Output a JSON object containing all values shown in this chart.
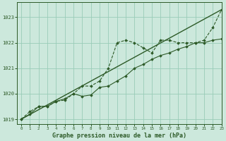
{
  "bg_color": "#cce8dc",
  "grid_color": "#99ccb8",
  "line_color": "#2d5a27",
  "title": "Graphe pression niveau de la mer (hPa)",
  "xlim": [
    -0.5,
    23
  ],
  "ylim": [
    1018.8,
    1023.6
  ],
  "yticks": [
    1019,
    1020,
    1021,
    1022,
    1023
  ],
  "xticks": [
    0,
    1,
    2,
    3,
    4,
    5,
    6,
    7,
    8,
    9,
    10,
    11,
    12,
    13,
    14,
    15,
    16,
    17,
    18,
    19,
    20,
    21,
    22,
    23
  ],
  "series_linear": {
    "x": [
      0,
      23
    ],
    "y": [
      1019.0,
      1023.3
    ]
  },
  "series_dotted": {
    "x": [
      0,
      1,
      2,
      3,
      4,
      5,
      6,
      7,
      8,
      9,
      10,
      11,
      12,
      13,
      14,
      15,
      16,
      17,
      18,
      19,
      20,
      21,
      22,
      23
    ],
    "y": [
      1019.0,
      1019.3,
      1019.5,
      1019.5,
      1019.7,
      1019.75,
      1020.0,
      1020.3,
      1020.3,
      1020.5,
      1021.0,
      1022.0,
      1022.1,
      1022.0,
      1021.8,
      1021.6,
      1022.1,
      1022.1,
      1022.0,
      1022.0,
      1022.0,
      1022.1,
      1022.6,
      1023.3
    ]
  },
  "series_solid": {
    "x": [
      0,
      1,
      2,
      3,
      4,
      5,
      6,
      7,
      8,
      9,
      10,
      11,
      12,
      13,
      14,
      15,
      16,
      17,
      18,
      19,
      20,
      21,
      22,
      23
    ],
    "y": [
      1019.0,
      1019.2,
      1019.5,
      1019.5,
      1019.7,
      1019.8,
      1020.0,
      1019.9,
      1019.95,
      1020.25,
      1020.3,
      1020.5,
      1020.7,
      1021.0,
      1021.15,
      1021.35,
      1021.5,
      1021.6,
      1021.75,
      1021.85,
      1022.0,
      1022.0,
      1022.1,
      1022.15
    ]
  }
}
